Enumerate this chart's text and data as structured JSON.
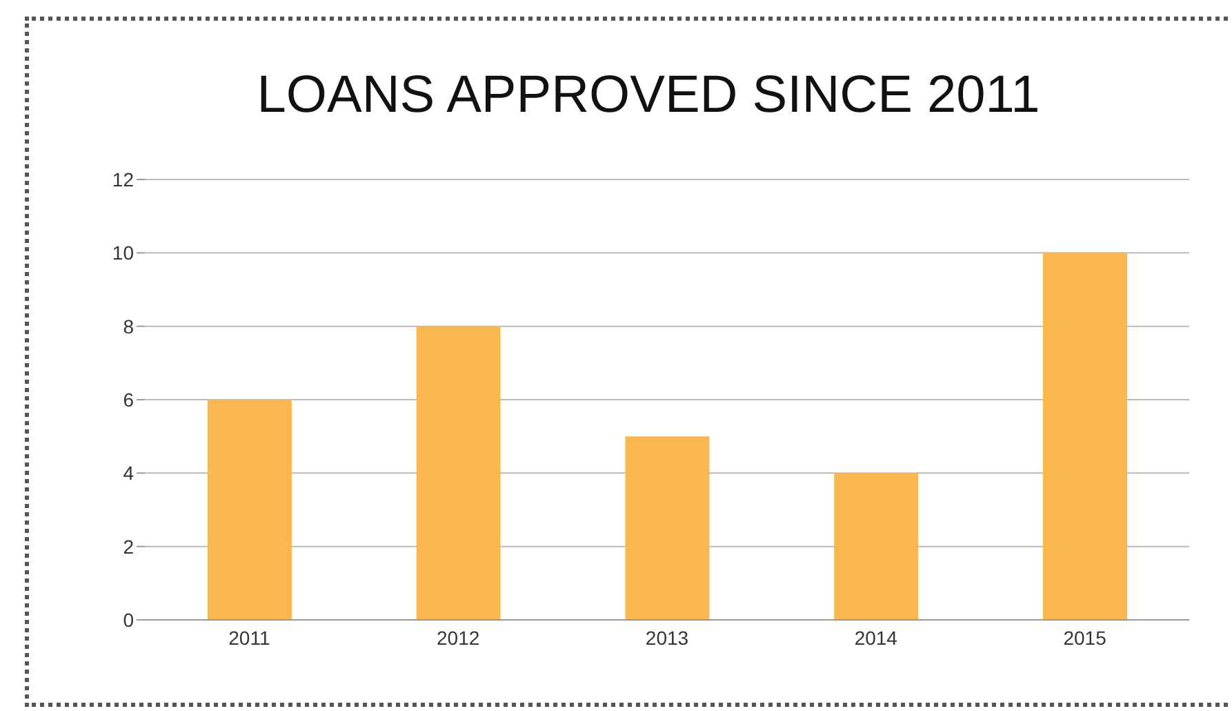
{
  "chart_data": {
    "type": "bar",
    "title": "LOANS APPROVED SINCE 2011",
    "categories": [
      "2011",
      "2012",
      "2013",
      "2014",
      "2015"
    ],
    "values": [
      6,
      8,
      5,
      4,
      10
    ],
    "color": "#f9b84d",
    "ylim": [
      0,
      12
    ],
    "yticks": [
      0,
      2,
      4,
      6,
      8,
      10,
      12
    ],
    "grid": "y"
  }
}
